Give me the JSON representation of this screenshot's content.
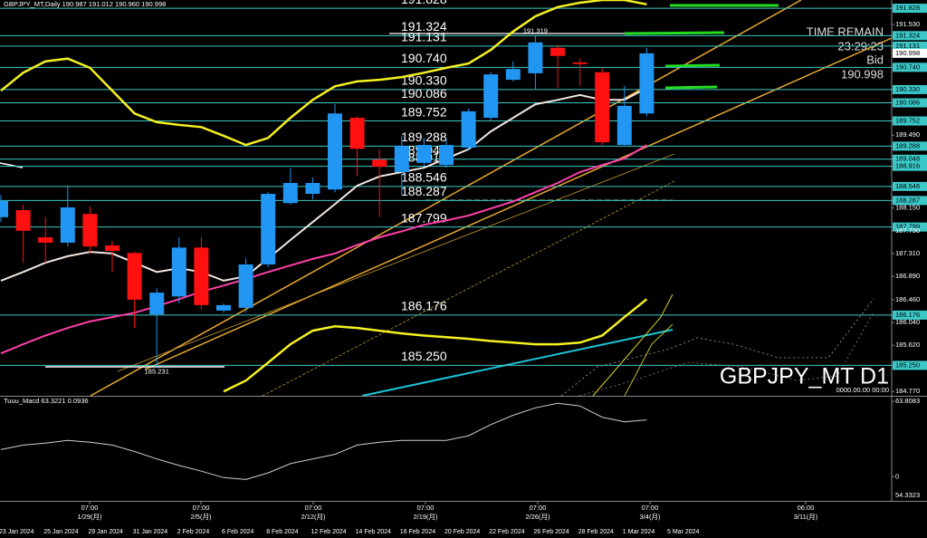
{
  "chart_data": {
    "type": "candlestick",
    "title": "GBPJPY_MT,Daily  190.987 191.012 190.960 190.998",
    "categories": [
      "23 Jan 2024",
      null,
      "25 Jan 2024",
      null,
      "29 Jan 2024",
      null,
      "31 Jan 2024",
      null,
      "2 Feb 2024",
      null,
      "6 Feb 2024",
      null,
      "8 Feb 2024",
      null,
      "12 Feb 2024",
      null,
      "14 Feb 2024",
      null,
      "16 Feb 2024",
      null,
      "20 Feb 2024",
      null,
      "22 Feb 2024",
      null,
      "26 Feb 2024",
      null,
      "28 Feb 2024",
      null,
      "1 Mar 2024",
      null
    ],
    "extra_category": "5 Mar 2024",
    "open": [
      187.98,
      188.11,
      187.61,
      187.51,
      188.04,
      187.46,
      187.32,
      186.19,
      186.52,
      187.42,
      186.26,
      186.31,
      187.11,
      188.24,
      188.41,
      188.49,
      189.81,
      189.04,
      188.81,
      188.98,
      188.94,
      189.26,
      189.81,
      190.51,
      190.63,
      191.1,
      190.83,
      190.65,
      189.31,
      189.89
    ],
    "high": [
      188.39,
      188.21,
      187.98,
      188.56,
      188.18,
      187.54,
      187.34,
      186.67,
      187.61,
      187.61,
      186.39,
      187.22,
      188.44,
      188.88,
      188.71,
      190.06,
      189.84,
      189.23,
      189.48,
      189.44,
      189.43,
      189.98,
      190.65,
      190.85,
      191.319,
      191.15,
      190.9,
      190.73,
      190.4,
      191.1
    ],
    "low": [
      187.89,
      187.14,
      187.14,
      187.44,
      187.31,
      186.97,
      185.94,
      185.231,
      186.39,
      186.27,
      186.22,
      186.22,
      187.06,
      188.21,
      188.31,
      188.44,
      188.74,
      187.98,
      188.39,
      188.93,
      188.89,
      189.21,
      189.76,
      190.48,
      190.33,
      190.36,
      190.4,
      189.31,
      189.28,
      189.84
    ],
    "close": [
      188.28,
      187.73,
      187.51,
      188.16,
      187.44,
      187.36,
      186.46,
      186.59,
      187.42,
      186.36,
      186.36,
      187.11,
      188.41,
      188.61,
      188.61,
      189.89,
      189.24,
      188.91,
      189.29,
      189.31,
      189.31,
      189.93,
      190.61,
      190.71,
      191.2,
      190.95,
      190.8,
      189.36,
      190.03,
      190.998
    ],
    "up_color": "#2196f3",
    "down_color": "#ff1010",
    "series": [
      {
        "color": "#ff3fa8",
        "values": [
          185.47,
          185.64,
          185.8,
          185.94,
          186.06,
          186.14,
          186.22,
          186.34,
          186.47,
          186.61,
          186.72,
          186.84,
          186.97,
          187.09,
          187.21,
          187.31,
          187.47,
          187.61,
          187.72,
          187.84,
          187.92,
          188.01,
          188.14,
          188.27,
          188.44,
          188.61,
          188.81,
          188.94,
          189.06,
          189.31
        ]
      },
      {
        "color": "#f2e6e0",
        "values": [
          186.81,
          186.97,
          187.14,
          187.26,
          187.34,
          187.31,
          187.14,
          186.97,
          187.04,
          186.97,
          186.81,
          186.89,
          187.22,
          187.56,
          187.89,
          188.22,
          188.56,
          188.73,
          188.81,
          188.89,
          189.06,
          189.23,
          189.56,
          189.81,
          190.06,
          190.14,
          190.23,
          190.14,
          190.14,
          190.36
        ]
      },
      {
        "color": "#f5f020",
        "values": [
          190.31,
          190.64,
          190.85,
          190.9,
          190.73,
          190.31,
          189.89,
          189.73,
          189.68,
          189.64,
          189.48,
          189.31,
          189.44,
          189.81,
          190.14,
          190.39,
          190.48,
          190.51,
          190.56,
          190.64,
          190.73,
          190.81,
          191.06,
          191.4,
          191.68,
          191.85,
          191.93,
          191.98,
          191.98,
          191.9
        ]
      },
      {
        "color": "#f5f020",
        "values": [
          null,
          null,
          null,
          null,
          null,
          null,
          null,
          null,
          null,
          null,
          184.77,
          184.97,
          185.3,
          185.64,
          185.89,
          185.97,
          185.94,
          185.89,
          185.84,
          185.8,
          185.77,
          185.74,
          185.7,
          185.67,
          185.64,
          185.64,
          185.67,
          185.8,
          186.14,
          186.47
        ]
      }
    ],
    "ylim": [
      184.69,
      191.98
    ],
    "yticks": [
      191.828,
      {
        "value": 191.53,
        "label": "191.530"
      },
      191.324,
      191.131,
      190.998,
      {
        "value": 190.74,
        "label": "190.740"
      },
      {
        "value": 190.33,
        "label": "190.330"
      },
      190.086,
      189.752,
      {
        "value": 189.49,
        "label": "189.490"
      },
      189.288,
      189.048,
      188.916,
      188.546,
      188.287,
      {
        "value": 188.15,
        "label": "188.150"
      },
      187.799,
      {
        "value": 187.73,
        "label": "187.730"
      },
      {
        "value": 187.31,
        "label": "187.310"
      },
      {
        "value": 186.89,
        "label": "186.890"
      },
      {
        "value": 186.46,
        "label": "186.460"
      },
      186.176,
      {
        "value": 186.04,
        "label": "186.040"
      },
      {
        "value": 185.62,
        "label": "185.620"
      },
      {
        "value": 185.25,
        "label": "185.250"
      },
      {
        "value": 184.77,
        "label": "184.770"
      }
    ],
    "levels": [
      191.828,
      191.324,
      191.131,
      {
        "value": 190.74,
        "label": "190.740"
      },
      {
        "value": 190.33,
        "label": "190.330"
      },
      190.086,
      189.752,
      189.288,
      189.048,
      188.916,
      188.546,
      188.287,
      187.799,
      186.176,
      {
        "value": 185.25,
        "label": "185.250"
      }
    ],
    "level_color": "#3cc8c8",
    "time_remain_label": "TIME REMAIN",
    "time_remain": "23:29:23",
    "bid_label": "Bid",
    "bid": 190.998,
    "symbol_label": "GBPJPY_MT D1",
    "date_placeholder": "0000.00.00 00:00",
    "week_markers": [
      {
        "time": "07:00",
        "date": "1/29(月)"
      },
      {
        "time": "07:00",
        "date": "2/5(月)"
      },
      {
        "time": "07:00",
        "date": "2/12(月)"
      },
      {
        "time": "07:00",
        "date": "2/19(月)"
      },
      {
        "time": "07:00",
        "date": "2/26(月)"
      },
      {
        "time": "07:00",
        "date": "3/4(月)"
      },
      {
        "time": "06:00",
        "date": "3/11(月)"
      }
    ],
    "oscillator": {
      "title": "Tuuu_Macd 63.3221 0.0936",
      "color": "#cfcfcf",
      "values": [
        22.9,
        26.8,
        28.4,
        30.7,
        29.2,
        26.8,
        21.3,
        15.0,
        9.5,
        4.7,
        -0.8,
        -2.4,
        3.2,
        11.0,
        15.0,
        18.9,
        26.8,
        29.2,
        30.7,
        30.7,
        30.7,
        34.7,
        44.1,
        52.0,
        58.3,
        62.2,
        59.9,
        50.4,
        46.5,
        48.1
      ],
      "ylim": [
        -20.5,
        66.2
      ],
      "yticks": [
        63.8083,
        0
      ],
      "extra_label": "54.3323"
    }
  }
}
